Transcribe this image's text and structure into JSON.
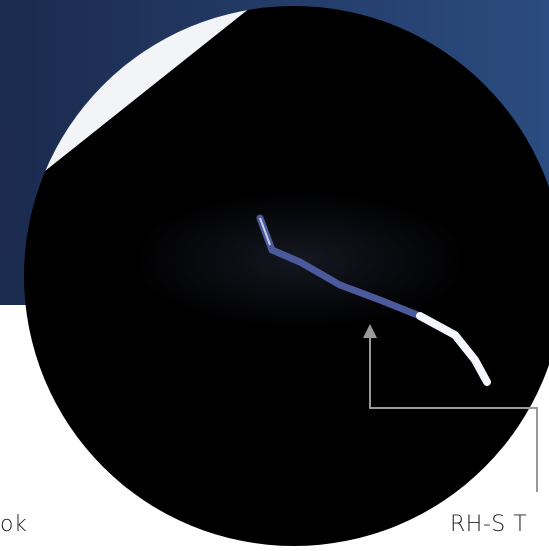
{
  "left_caption": "ok",
  "right_caption": "RH-S T"
}
